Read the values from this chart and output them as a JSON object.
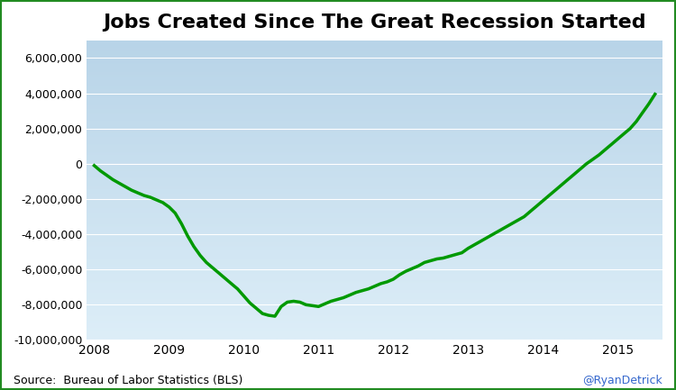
{
  "title": "Jobs Created Since The Great Recession Started",
  "title_fontsize": 16,
  "source_text": "Source:  Bureau of Labor Statistics (BLS)",
  "credit_text": "@RyanDetrick",
  "ylim": [
    -10000000,
    7000000
  ],
  "yticks": [
    -10000000,
    -8000000,
    -6000000,
    -4000000,
    -2000000,
    0,
    2000000,
    4000000,
    6000000
  ],
  "line_color": "#009900",
  "line_width": 2.5,
  "background_top": "#b8d4e8",
  "background_bottom": "#ddeef8",
  "border_color": "#228B22",
  "border_width": 3,
  "x_values": [
    2008.0,
    2008.083,
    2008.167,
    2008.25,
    2008.333,
    2008.417,
    2008.5,
    2008.583,
    2008.667,
    2008.75,
    2008.833,
    2008.917,
    2009.0,
    2009.083,
    2009.167,
    2009.25,
    2009.333,
    2009.417,
    2009.5,
    2009.583,
    2009.667,
    2009.75,
    2009.833,
    2009.917,
    2010.0,
    2010.083,
    2010.167,
    2010.25,
    2010.333,
    2010.417,
    2010.5,
    2010.583,
    2010.667,
    2010.75,
    2010.833,
    2010.917,
    2011.0,
    2011.083,
    2011.167,
    2011.25,
    2011.333,
    2011.417,
    2011.5,
    2011.583,
    2011.667,
    2011.75,
    2011.833,
    2011.917,
    2012.0,
    2012.083,
    2012.167,
    2012.25,
    2012.333,
    2012.417,
    2012.5,
    2012.583,
    2012.667,
    2012.75,
    2012.833,
    2012.917,
    2013.0,
    2013.083,
    2013.167,
    2013.25,
    2013.333,
    2013.417,
    2013.5,
    2013.583,
    2013.667,
    2013.75,
    2013.833,
    2013.917,
    2014.0,
    2014.083,
    2014.167,
    2014.25,
    2014.333,
    2014.417,
    2014.5,
    2014.583,
    2014.667,
    2014.75,
    2014.833,
    2014.917,
    2015.0,
    2015.083,
    2015.167,
    2015.25,
    2015.333,
    2015.417,
    2015.5
  ],
  "y_values": [
    -100000,
    -400000,
    -650000,
    -900000,
    -1100000,
    -1300000,
    -1500000,
    -1650000,
    -1800000,
    -1900000,
    -2050000,
    -2200000,
    -2450000,
    -2800000,
    -3400000,
    -4100000,
    -4700000,
    -5200000,
    -5600000,
    -5900000,
    -6200000,
    -6500000,
    -6800000,
    -7100000,
    -7500000,
    -7900000,
    -8200000,
    -8500000,
    -8600000,
    -8650000,
    -8100000,
    -7850000,
    -7800000,
    -7850000,
    -8000000,
    -8050000,
    -8100000,
    -7950000,
    -7800000,
    -7700000,
    -7600000,
    -7450000,
    -7300000,
    -7200000,
    -7100000,
    -6950000,
    -6800000,
    -6700000,
    -6550000,
    -6300000,
    -6100000,
    -5950000,
    -5800000,
    -5600000,
    -5500000,
    -5400000,
    -5350000,
    -5250000,
    -5150000,
    -5050000,
    -4800000,
    -4600000,
    -4400000,
    -4200000,
    -4000000,
    -3800000,
    -3600000,
    -3400000,
    -3200000,
    -3000000,
    -2700000,
    -2400000,
    -2100000,
    -1800000,
    -1500000,
    -1200000,
    -900000,
    -600000,
    -300000,
    0,
    250000,
    500000,
    800000,
    1100000,
    1400000,
    1700000,
    2000000,
    2400000,
    2900000,
    3400000,
    3950000
  ],
  "xticks": [
    2008,
    2009,
    2010,
    2011,
    2012,
    2013,
    2014,
    2015
  ],
  "xlim": [
    2007.9,
    2015.6
  ]
}
